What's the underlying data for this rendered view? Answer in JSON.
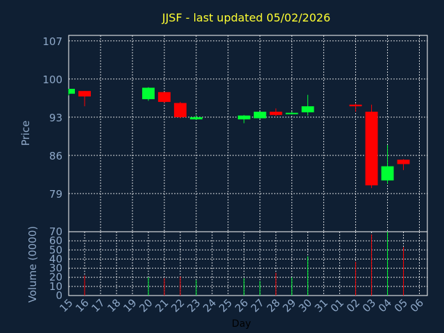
{
  "chart_data": {
    "type": "candlestick",
    "title": "JJSF - last updated 05/02/2026",
    "xlabel": "Day",
    "price_panel": {
      "ylabel": "Price",
      "ylim": [
        72,
        108
      ],
      "yticks": [
        79,
        86,
        93,
        100,
        107
      ],
      "grid": true
    },
    "volume_panel": {
      "ylabel": "Volume (0000)",
      "ylim": [
        0,
        70
      ],
      "yticks": [
        0,
        10,
        20,
        30,
        40,
        50,
        60,
        70
      ],
      "grid": true
    },
    "x_tick_labels": [
      "15",
      "16",
      "17",
      "18",
      "19",
      "20",
      "21",
      "22",
      "23",
      "24",
      "25",
      "26",
      "27",
      "28",
      "29",
      "30",
      "31",
      "01",
      "02",
      "03",
      "04",
      "05",
      "06"
    ],
    "colors": {
      "background": "#0f1f33",
      "up": "#00ff33",
      "down": "#ff0000",
      "title": "#ffff33",
      "axis_text": "#8fa9c9"
    },
    "candles": [
      {
        "day": "15",
        "open": 97.3,
        "high": 98.2,
        "low": 97.0,
        "close": 98.2,
        "volume": 0
      },
      {
        "day": "16",
        "open": 97.8,
        "high": 97.8,
        "low": 95.0,
        "close": 96.8,
        "volume": 22
      },
      {
        "day": "20",
        "open": 96.3,
        "high": 98.5,
        "low": 96.0,
        "close": 98.4,
        "volume": 20
      },
      {
        "day": "21",
        "open": 97.6,
        "high": 97.6,
        "low": 95.6,
        "close": 95.8,
        "volume": 19
      },
      {
        "day": "22",
        "open": 95.6,
        "high": 95.8,
        "low": 92.8,
        "close": 93.0,
        "volume": 21
      },
      {
        "day": "23",
        "open": 92.6,
        "high": 93.4,
        "low": 92.5,
        "close": 93.0,
        "volume": 17
      },
      {
        "day": "26",
        "open": 92.6,
        "high": 93.4,
        "low": 91.9,
        "close": 93.3,
        "volume": 19
      },
      {
        "day": "27",
        "open": 92.8,
        "high": 94.0,
        "low": 92.7,
        "close": 94.0,
        "volume": 16
      },
      {
        "day": "28",
        "open": 94.0,
        "high": 94.6,
        "low": 93.2,
        "close": 93.4,
        "volume": 25
      },
      {
        "day": "29",
        "open": 93.6,
        "high": 94.0,
        "low": 93.5,
        "close": 93.8,
        "volume": 20
      },
      {
        "day": "30",
        "open": 93.9,
        "high": 97.1,
        "low": 93.3,
        "close": 95.0,
        "volume": 43
      },
      {
        "day": "02",
        "open": 95.3,
        "high": 95.5,
        "low": 94.0,
        "close": 95.0,
        "volume": 37
      },
      {
        "day": "03",
        "open": 94.0,
        "high": 95.3,
        "low": 80.0,
        "close": 80.5,
        "volume": 67
      },
      {
        "day": "04",
        "open": 81.4,
        "high": 87.9,
        "low": 80.8,
        "close": 84.0,
        "volume": 70
      },
      {
        "day": "05",
        "open": 85.2,
        "high": 85.3,
        "low": 83.3,
        "close": 84.4,
        "volume": 53
      }
    ]
  }
}
